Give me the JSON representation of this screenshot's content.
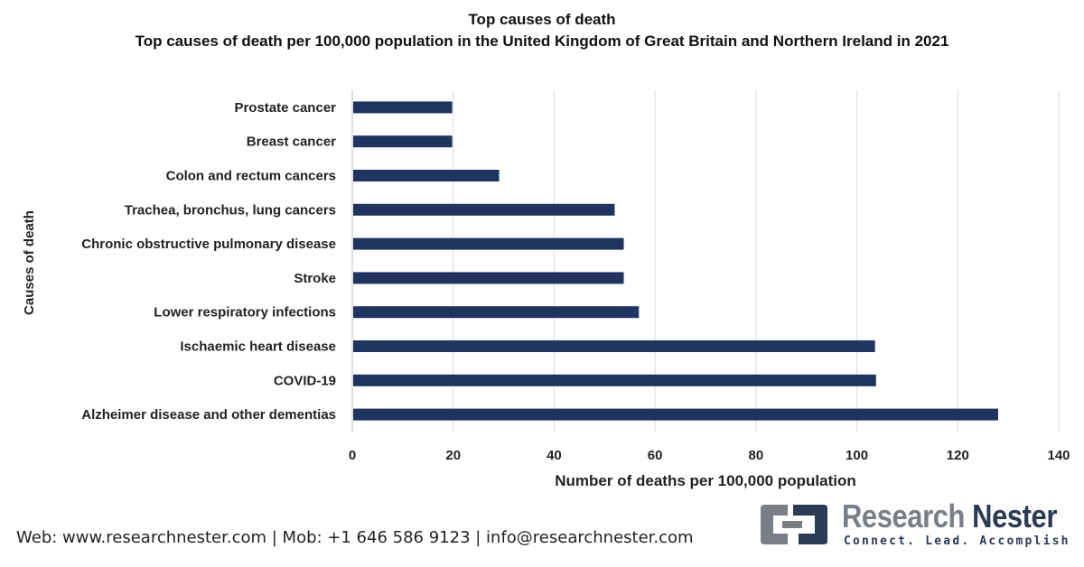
{
  "chart_data": {
    "type": "bar",
    "orientation": "horizontal",
    "title": "Top causes of death",
    "subtitle": "Top causes of death per 100,000 population in the United Kingdom of Great Britain and Northern Ireland in 2021",
    "xlabel": "Number of deaths per 100,000 population",
    "ylabel": "Causes of death",
    "xlim": [
      0,
      140
    ],
    "xticks": [
      0,
      20,
      40,
      60,
      80,
      100,
      120,
      140
    ],
    "grid": "vertical",
    "bar_color": "#1f3560",
    "categories": [
      "Prostate cancer",
      "Breast cancer",
      "Colon and rectum cancers",
      "Trachea, bronchus, lung cancers",
      "Chronic obstructive pulmonary disease",
      "Stroke",
      "Lower respiratory infections",
      "Ischaemic heart disease",
      "COVID-19",
      "Alzheimer disease and other dementias"
    ],
    "values": [
      19.8,
      19.8,
      29.1,
      52.0,
      53.8,
      53.8,
      56.8,
      103.6,
      103.8,
      128.0
    ]
  },
  "footer": {
    "contact": "Web: www.researchnester.com | Mob: +1 646 586 9123 | info@researchnester.com"
  },
  "logo": {
    "name_part1": "Research",
    "name_part2": "Nester",
    "tagline": "Connect. Lead. Accomplish",
    "colors": {
      "dark": "#2b3a55",
      "gray": "#7a7f86"
    }
  }
}
